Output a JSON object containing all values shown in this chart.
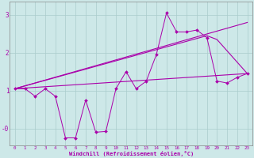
{
  "xlabel": "Windchill (Refroidissement éolien,°C)",
  "background_color": "#cde8e8",
  "grid_color": "#aacccc",
  "line_color": "#aa00aa",
  "xlim": [
    -0.5,
    23.5
  ],
  "ylim": [
    -0.45,
    3.35
  ],
  "xticks": [
    0,
    1,
    2,
    3,
    4,
    5,
    6,
    7,
    8,
    9,
    10,
    11,
    12,
    13,
    14,
    15,
    16,
    17,
    18,
    19,
    20,
    21,
    22,
    23
  ],
  "yticks": [
    3,
    2,
    1,
    0
  ],
  "ytick_labels": [
    "3",
    "2",
    "1",
    "-0"
  ],
  "jagged_x": [
    0,
    1,
    2,
    3,
    4,
    5,
    6,
    7,
    8,
    9,
    10,
    11,
    12,
    13,
    14,
    15,
    16,
    17,
    18,
    19,
    20,
    21,
    22,
    23
  ],
  "jagged_y": [
    1.05,
    1.05,
    0.85,
    1.05,
    0.85,
    -0.25,
    -0.25,
    0.75,
    -0.1,
    -0.08,
    1.05,
    1.5,
    1.05,
    1.25,
    1.95,
    3.05,
    2.55,
    2.55,
    2.6,
    2.4,
    1.25,
    1.2,
    1.35,
    1.45
  ],
  "line2_x": [
    0,
    23
  ],
  "line2_y": [
    1.05,
    1.45
  ],
  "line3_x": [
    0,
    23
  ],
  "line3_y": [
    1.05,
    2.8
  ],
  "line4_x": [
    0,
    19,
    20,
    23
  ],
  "line4_y": [
    1.05,
    2.45,
    2.35,
    1.45
  ]
}
